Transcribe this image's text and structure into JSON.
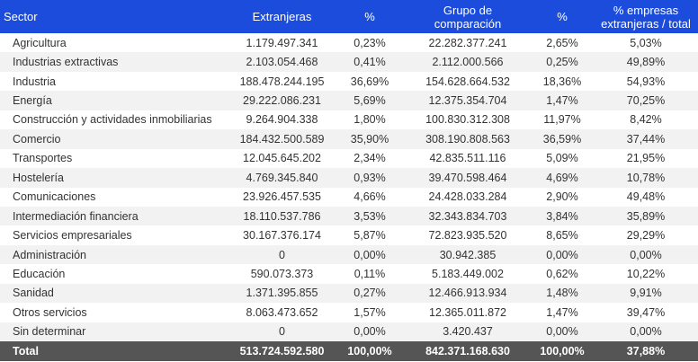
{
  "headers": [
    "Sector",
    "Extranjeras",
    "%",
    "Grupo de comparación",
    "%",
    "% empresas extranjeras / total"
  ],
  "rows": [
    [
      "Agricultura",
      "1.179.497.341",
      "0,23%",
      "22.282.377.241",
      "2,65%",
      "5,03%"
    ],
    [
      "Industrias extractivas",
      "2.103.054.468",
      "0,41%",
      "2.112.000.566",
      "0,25%",
      "49,89%"
    ],
    [
      "Industria",
      "188.478.244.195",
      "36,69%",
      "154.628.664.532",
      "18,36%",
      "54,93%"
    ],
    [
      "Energía",
      "29.222.086.231",
      "5,69%",
      "12.375.354.704",
      "1,47%",
      "70,25%"
    ],
    [
      "Construcción y actividades inmobiliarias",
      "9.264.904.338",
      "1,80%",
      "100.830.312.308",
      "11,97%",
      "8,42%"
    ],
    [
      "Comercio",
      "184.432.500.589",
      "35,90%",
      "308.190.808.563",
      "36,59%",
      "37,44%"
    ],
    [
      "Transportes",
      "12.045.645.202",
      "2,34%",
      "42.835.511.116",
      "5,09%",
      "21,95%"
    ],
    [
      "Hostelería",
      "4.769.345.840",
      "0,93%",
      "39.470.598.464",
      "4,69%",
      "10,78%"
    ],
    [
      "Comunicaciones",
      "23.926.457.535",
      "4,66%",
      "24.428.033.284",
      "2,90%",
      "49,48%"
    ],
    [
      "Intermediación financiera",
      "18.110.537.786",
      "3,53%",
      "32.343.834.703",
      "3,84%",
      "35,89%"
    ],
    [
      "Servicios empresariales",
      "30.167.376.174",
      "5,87%",
      "72.823.935.520",
      "8,65%",
      "29,29%"
    ],
    [
      "Administración",
      "0",
      "0,00%",
      "30.942.385",
      "0,00%",
      "0,00%"
    ],
    [
      "Educación",
      "590.073.373",
      "0,11%",
      "5.183.449.002",
      "0,62%",
      "10,22%"
    ],
    [
      "Sanidad",
      "1.371.395.855",
      "0,27%",
      "12.466.913.934",
      "1,48%",
      "9,91%"
    ],
    [
      "Otros servicios",
      "8.063.473.652",
      "1,57%",
      "12.365.011.872",
      "1,47%",
      "39,47%"
    ],
    [
      "Sin determinar",
      "0",
      "0,00%",
      "3.420.437",
      "0,00%",
      "0,00%"
    ]
  ],
  "total": [
    "Total",
    "513.724.592.580",
    "100,00%",
    "842.371.168.630",
    "100,00%",
    "37,88%"
  ]
}
